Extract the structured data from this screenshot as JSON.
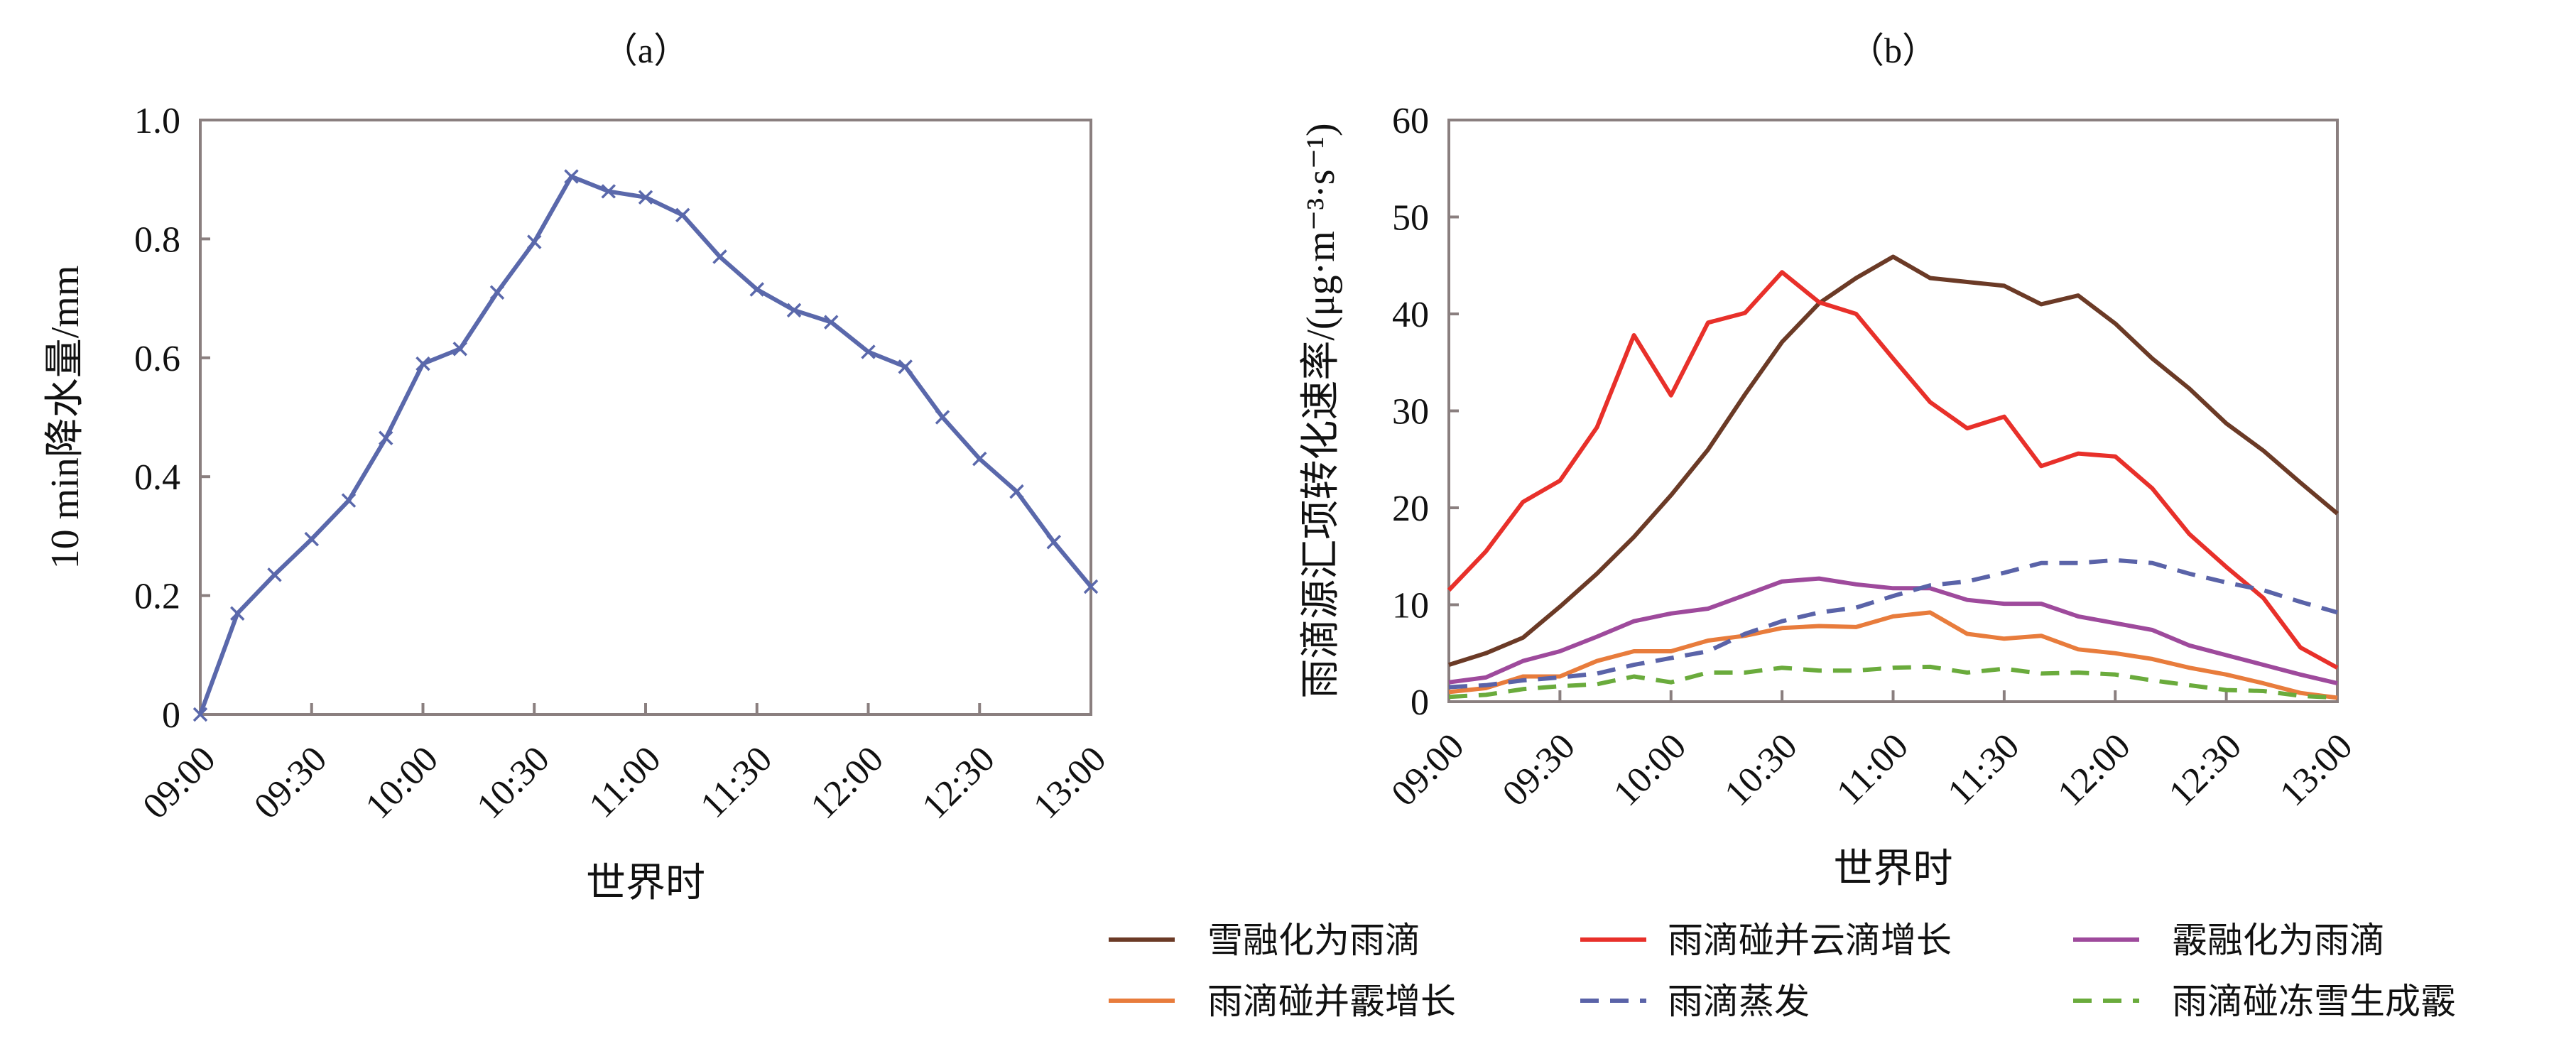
{
  "chart_data": [
    {
      "type": "line",
      "title": "（a）",
      "xlabel": "世界时",
      "ylabel": "10 min降水量/mm",
      "ylim": [
        0,
        1.0
      ],
      "yticks": [
        "0",
        "0.2",
        "0.4",
        "0.6",
        "0.8",
        "1.0"
      ],
      "ytick_values": [
        0,
        0.2,
        0.4,
        0.6,
        0.8,
        1.0
      ],
      "xticks": [
        "09:00",
        "09:30",
        "10:00",
        "10:30",
        "11:00",
        "11:30",
        "12:00",
        "12:30",
        "13:00"
      ],
      "x_interval_min": 10,
      "series": [
        {
          "name": "10 min降水量",
          "color": "#5a68ab",
          "marker": "x",
          "values": [
            0,
            0.17,
            0.235,
            0.295,
            0.36,
            0.465,
            0.59,
            0.615,
            0.71,
            0.795,
            0.905,
            0.88,
            0.87,
            0.84,
            0.77,
            0.715,
            0.68,
            0.66,
            0.61,
            0.585,
            0.5,
            0.43,
            0.375,
            0.29,
            0.215
          ]
        }
      ]
    },
    {
      "type": "line",
      "title": "（b）",
      "xlabel": "世界时",
      "ylabel": "雨滴源汇项转化速率/(μg·m⁻³·s⁻¹)",
      "ylim": [
        0,
        60
      ],
      "yticks": [
        "0",
        "10",
        "20",
        "30",
        "40",
        "50",
        "60"
      ],
      "ytick_values": [
        0,
        10,
        20,
        30,
        40,
        50,
        60
      ],
      "xticks": [
        "09:00",
        "09:30",
        "10:00",
        "10:30",
        "11:00",
        "11:30",
        "12:00",
        "12:30",
        "13:00"
      ],
      "x_interval_min": 10,
      "legend_position": "bottom",
      "series": [
        {
          "name": "雪融化为雨滴",
          "color": "#6b3a26",
          "dash": false,
          "values": [
            3.8,
            5,
            6.6,
            9.8,
            13.2,
            17,
            21.3,
            26,
            31.7,
            37.1,
            41.1,
            43.7,
            45.9,
            43.7,
            43.3,
            42.9,
            41,
            41.9,
            39,
            35.4,
            32.3,
            28.7,
            25.9,
            22.6,
            19.4
          ]
        },
        {
          "name": "雨滴碰并云滴增长",
          "color": "#e8302a",
          "dash": false,
          "values": [
            11.5,
            15.5,
            20.6,
            22.8,
            28.3,
            37.8,
            31.6,
            39.1,
            40.1,
            44.3,
            41.2,
            40,
            35.4,
            30.9,
            28.2,
            29.4,
            24.3,
            25.6,
            25.3,
            22,
            17.3,
            13.9,
            10.7,
            5.6,
            3.5
          ]
        },
        {
          "name": "霰融化为雨滴",
          "color": "#9e4a9c",
          "dash": false,
          "values": [
            2,
            2.5,
            4.2,
            5.2,
            6.7,
            8.3,
            9.1,
            9.6,
            11,
            12.4,
            12.7,
            12.1,
            11.7,
            11.7,
            10.5,
            10.1,
            10.1,
            8.8,
            8.1,
            7.4,
            5.8,
            4.8,
            3.8,
            2.8,
            1.9
          ]
        },
        {
          "name": "雨滴碰并霰增长",
          "color": "#e87c3c",
          "dash": false,
          "values": [
            1,
            1.4,
            2.6,
            2.6,
            4.2,
            5.2,
            5.2,
            6.3,
            6.8,
            7.6,
            7.8,
            7.7,
            8.8,
            9.2,
            7,
            6.5,
            6.8,
            5.4,
            5,
            4.4,
            3.5,
            2.8,
            1.9,
            0.9,
            0.4
          ]
        },
        {
          "name": "雨滴蒸发",
          "color": "#5a63a8",
          "dash": true,
          "values": [
            1.5,
            1.7,
            2.2,
            2.5,
            2.9,
            3.8,
            4.5,
            5.2,
            7,
            8.3,
            9.2,
            9.7,
            10.9,
            12,
            12.4,
            13.3,
            14.3,
            14.3,
            14.6,
            14.3,
            13.2,
            12.3,
            11.5,
            10.3,
            9.2
          ]
        },
        {
          "name": "雨滴碰冻雪生成霰",
          "color": "#6aab3c",
          "dash": true,
          "values": [
            0.5,
            0.7,
            1.3,
            1.6,
            1.8,
            2.6,
            2,
            3,
            3,
            3.5,
            3.2,
            3.2,
            3.5,
            3.6,
            3,
            3.4,
            2.9,
            3,
            2.8,
            2.2,
            1.7,
            1.2,
            1.1,
            0.6,
            0.4
          ]
        }
      ]
    }
  ]
}
